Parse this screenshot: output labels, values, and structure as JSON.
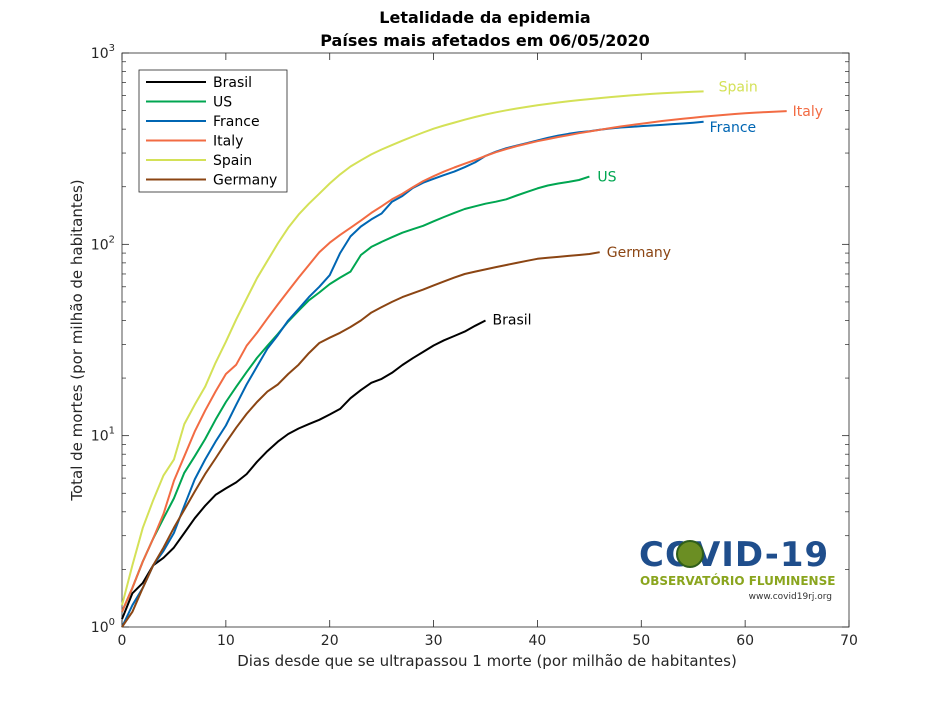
{
  "chart_data": {
    "type": "line",
    "title": "Letalidade da epidemia",
    "subtitle": "Países mais afetados em 06/05/2020",
    "xlabel": "Dias desde que se ultrapassou 1 morte (por milhão de habitantes)",
    "ylabel": "Total de mortes (por milhão de habitantes)",
    "xlim": [
      0,
      70
    ],
    "ylim": [
      1,
      1000
    ],
    "yscale": "log",
    "xticks": [
      0,
      10,
      20,
      30,
      40,
      50,
      60,
      70
    ],
    "xtick_labels": [
      "0",
      "10",
      "20",
      "30",
      "40",
      "50",
      "60",
      "70"
    ],
    "yticks": [
      1,
      10,
      100,
      1000
    ],
    "ytick_labels": [
      {
        "base": "10",
        "exp": "0"
      },
      {
        "base": "10",
        "exp": "1"
      },
      {
        "base": "10",
        "exp": "2"
      },
      {
        "base": "10",
        "exp": "3"
      }
    ],
    "grid": false,
    "legend_position": "top-left",
    "series": [
      {
        "name": "Brasil",
        "color": "#000000",
        "label": "Brasil",
        "x": [
          0,
          1,
          2,
          3,
          4,
          5,
          6,
          7,
          8,
          9,
          10,
          11,
          12,
          13,
          14,
          15,
          16,
          17,
          18,
          19,
          20,
          21,
          22,
          23,
          24,
          25,
          26,
          27,
          28,
          29,
          30,
          31,
          32,
          33,
          34,
          35
        ],
        "y": [
          1.1,
          1.5,
          1.7,
          2.1,
          2.3,
          2.6,
          3.1,
          3.7,
          4.3,
          4.9,
          5.3,
          5.7,
          6.3,
          7.3,
          8.3,
          9.3,
          10.2,
          10.9,
          11.5,
          12.1,
          12.9,
          13.8,
          15.7,
          17.3,
          18.9,
          19.8,
          21.3,
          23.4,
          25.4,
          27.4,
          29.6,
          31.5,
          33.2,
          35,
          37.5,
          40
        ]
      },
      {
        "name": "US",
        "color": "#00a651",
        "label": "US",
        "x": [
          0,
          1,
          2,
          3,
          4,
          5,
          6,
          7,
          8,
          9,
          10,
          11,
          12,
          13,
          14,
          15,
          16,
          17,
          18,
          19,
          20,
          21,
          22,
          23,
          24,
          25,
          26,
          27,
          28,
          29,
          30,
          31,
          32,
          33,
          34,
          35,
          36,
          37,
          38,
          39,
          40,
          41,
          42,
          43,
          44,
          45
        ],
        "y": [
          1.2,
          1.6,
          2.2,
          2.9,
          3.7,
          4.7,
          6.4,
          7.8,
          9.6,
          12.1,
          15,
          18,
          21.5,
          25.5,
          29.5,
          34,
          39.5,
          45,
          51,
          56,
          62,
          67,
          72,
          88,
          97,
          103,
          109,
          115,
          120,
          125,
          132,
          139,
          146,
          153,
          158,
          163,
          167,
          172,
          180,
          188,
          196,
          203,
          208,
          212,
          217,
          226
        ]
      },
      {
        "name": "France",
        "color": "#0066b3",
        "label": "France",
        "x": [
          0,
          1,
          2,
          3,
          4,
          5,
          6,
          7,
          8,
          9,
          10,
          11,
          12,
          13,
          14,
          15,
          16,
          17,
          18,
          19,
          20,
          21,
          22,
          23,
          24,
          25,
          26,
          27,
          28,
          29,
          30,
          31,
          32,
          33,
          34,
          35,
          36,
          37,
          38,
          39,
          40,
          41,
          42,
          43,
          44,
          45,
          46,
          47,
          48,
          49,
          50,
          51,
          52,
          53,
          54,
          55,
          56
        ],
        "y": [
          1,
          1.3,
          1.6,
          2.1,
          2.5,
          3.1,
          4.3,
          5.9,
          7.5,
          9.3,
          11.3,
          14.5,
          18.5,
          23,
          28.5,
          33.5,
          40,
          46,
          53,
          60,
          69,
          90,
          110,
          124,
          135,
          145,
          167,
          179,
          197,
          210,
          220,
          230,
          240,
          253,
          268,
          290,
          305,
          318,
          328,
          338,
          349,
          360,
          370,
          378,
          385,
          390,
          397,
          403,
          408,
          411,
          415,
          418,
          421,
          425,
          428,
          432,
          437
        ]
      },
      {
        "name": "Italy",
        "color": "#f26b43",
        "label": "Italy",
        "x": [
          0,
          1,
          2,
          3,
          4,
          5,
          6,
          7,
          8,
          9,
          10,
          11,
          12,
          13,
          14,
          15,
          16,
          17,
          18,
          19,
          20,
          21,
          22,
          23,
          24,
          25,
          26,
          27,
          28,
          29,
          30,
          31,
          32,
          33,
          34,
          35,
          36,
          37,
          38,
          39,
          40,
          41,
          42,
          43,
          44,
          45,
          46,
          47,
          48,
          49,
          50,
          51,
          52,
          53,
          54,
          55,
          56,
          57,
          58,
          59,
          60,
          61,
          62,
          63,
          64
        ],
        "y": [
          1.2,
          1.6,
          2.2,
          2.9,
          3.9,
          5.8,
          7.8,
          10.5,
          13.5,
          17,
          21,
          23.5,
          29.5,
          34.5,
          41,
          48.5,
          57,
          67,
          78,
          91,
          102,
          112,
          122,
          133,
          146,
          158,
          172,
          184,
          199,
          214,
          227,
          240,
          252,
          264,
          276,
          290,
          303,
          315,
          326,
          336,
          346,
          355,
          364,
          372,
          381,
          389,
          397,
          405,
          413,
          420,
          427,
          434,
          441,
          447,
          453,
          459,
          465,
          470,
          475,
          480,
          484,
          488,
          491,
          494,
          497
        ]
      },
      {
        "name": "Spain",
        "color": "#d4e157",
        "label": "Spain",
        "x": [
          0,
          1,
          2,
          3,
          4,
          5,
          6,
          7,
          8,
          9,
          10,
          11,
          12,
          13,
          14,
          15,
          16,
          17,
          18,
          19,
          20,
          21,
          22,
          23,
          24,
          25,
          26,
          27,
          28,
          29,
          30,
          31,
          32,
          33,
          34,
          35,
          36,
          37,
          38,
          39,
          40,
          41,
          42,
          43,
          44,
          45,
          46,
          47,
          48,
          49,
          50,
          51,
          52,
          53,
          54,
          55,
          56
        ],
        "y": [
          1.3,
          2.1,
          3.3,
          4.6,
          6.2,
          7.5,
          11.5,
          14.5,
          18,
          24,
          31,
          40.5,
          52,
          66.5,
          82,
          101,
          122,
          143,
          163,
          184,
          208,
          232,
          255,
          275,
          295,
          313,
          330,
          348,
          366,
          384,
          402,
          418,
          433,
          448,
          463,
          477,
          490,
          502,
          513,
          523,
          533,
          542,
          551,
          559,
          567,
          574,
          581,
          588,
          594,
          600,
          606,
          611,
          616,
          620,
          624,
          627,
          630
        ]
      },
      {
        "name": "Germany",
        "color": "#8b4513",
        "label": "Germany",
        "x": [
          0,
          1,
          2,
          3,
          4,
          5,
          6,
          7,
          8,
          9,
          10,
          11,
          12,
          13,
          14,
          15,
          16,
          17,
          18,
          19,
          20,
          21,
          22,
          23,
          24,
          25,
          26,
          27,
          28,
          29,
          30,
          31,
          32,
          33,
          34,
          35,
          36,
          37,
          38,
          39,
          40,
          41,
          42,
          43,
          44,
          45,
          46
        ],
        "y": [
          1,
          1.2,
          1.6,
          2.1,
          2.6,
          3.3,
          4.1,
          5.1,
          6.3,
          7.6,
          9.2,
          11,
          13,
          15,
          17,
          18.5,
          21,
          23.5,
          27,
          30.5,
          32.5,
          34.5,
          37,
          40,
          44,
          47,
          50,
          53,
          55.5,
          58,
          61,
          64,
          67,
          70,
          72,
          74,
          76,
          78,
          80,
          82,
          84,
          85,
          86,
          87,
          88,
          89,
          91
        ]
      }
    ]
  },
  "logo": {
    "title": "COVID-19",
    "subtitle": "OBSERVATÓRIO FLUMINENSE",
    "url": "www.covid19rj.org"
  }
}
